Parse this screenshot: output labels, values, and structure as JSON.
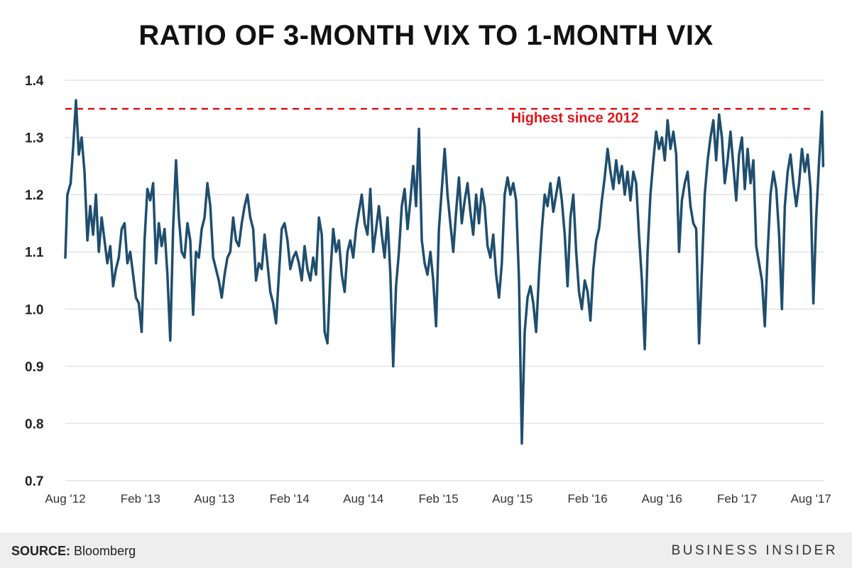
{
  "title": "RATIO OF 3-MONTH VIX TO 1-MONTH VIX",
  "footer": {
    "source_label": "SOURCE:",
    "source_value": "Bloomberg",
    "brand": "BUSINESS INSIDER"
  },
  "colors": {
    "line": "#1f4e6e",
    "reference_line": "#e0161b",
    "annotation": "#e0161b",
    "grid": "#e4e4e4",
    "footer_bg": "#eeeeee"
  },
  "chart_data": {
    "type": "line",
    "title": "RATIO OF 3-MONTH VIX TO 1-MONTH VIX",
    "xlabel": "",
    "ylabel": "",
    "ylim": [
      0.7,
      1.4
    ],
    "yticks": [
      "0.7",
      "0.8",
      "0.9",
      "1.0",
      "1.1",
      "1.2",
      "1.3",
      "1.4"
    ],
    "x_start": "2012-08-01",
    "x_end": "2017-09-01",
    "xtick_labels": [
      {
        "date": "2012-08-01",
        "label": "Aug '12"
      },
      {
        "date": "2013-02-01",
        "label": "Feb '13"
      },
      {
        "date": "2013-08-01",
        "label": "Aug '13"
      },
      {
        "date": "2014-02-01",
        "label": "Feb '14"
      },
      {
        "date": "2014-08-01",
        "label": "Aug '14"
      },
      {
        "date": "2015-02-01",
        "label": "Feb '15"
      },
      {
        "date": "2015-08-01",
        "label": "Aug '15"
      },
      {
        "date": "2016-02-01",
        "label": "Feb '16"
      },
      {
        "date": "2016-08-01",
        "label": "Aug '16"
      },
      {
        "date": "2017-02-01",
        "label": "Feb '17"
      },
      {
        "date": "2017-08-01",
        "label": "Aug '17"
      }
    ],
    "grid": true,
    "reference_line": {
      "value": 1.35,
      "style": "dashed"
    },
    "annotation": {
      "text": "Highest since 2012",
      "date": "2016-01-01",
      "value": 1.32
    },
    "series": [
      {
        "points": [
          [
            "2012-08-01",
            1.09
          ],
          [
            "2012-08-06",
            1.2
          ],
          [
            "2012-08-14",
            1.22
          ],
          [
            "2012-08-20",
            1.28
          ],
          [
            "2012-08-27",
            1.365
          ],
          [
            "2012-09-03",
            1.27
          ],
          [
            "2012-09-10",
            1.3
          ],
          [
            "2012-09-17",
            1.24
          ],
          [
            "2012-09-24",
            1.12
          ],
          [
            "2012-10-01",
            1.18
          ],
          [
            "2012-10-08",
            1.13
          ],
          [
            "2012-10-15",
            1.2
          ],
          [
            "2012-10-22",
            1.1
          ],
          [
            "2012-10-29",
            1.16
          ],
          [
            "2012-11-05",
            1.12
          ],
          [
            "2012-11-12",
            1.08
          ],
          [
            "2012-11-19",
            1.11
          ],
          [
            "2012-11-26",
            1.04
          ],
          [
            "2012-12-03",
            1.07
          ],
          [
            "2012-12-10",
            1.09
          ],
          [
            "2012-12-17",
            1.14
          ],
          [
            "2012-12-24",
            1.15
          ],
          [
            "2012-12-31",
            1.08
          ],
          [
            "2013-01-07",
            1.1
          ],
          [
            "2013-01-14",
            1.06
          ],
          [
            "2013-01-21",
            1.02
          ],
          [
            "2013-01-28",
            1.01
          ],
          [
            "2013-02-04",
            0.96
          ],
          [
            "2013-02-11",
            1.12
          ],
          [
            "2013-02-18",
            1.21
          ],
          [
            "2013-02-25",
            1.19
          ],
          [
            "2013-03-04",
            1.22
          ],
          [
            "2013-03-11",
            1.08
          ],
          [
            "2013-03-18",
            1.15
          ],
          [
            "2013-03-25",
            1.11
          ],
          [
            "2013-04-01",
            1.14
          ],
          [
            "2013-04-08",
            1.06
          ],
          [
            "2013-04-15",
            0.945
          ],
          [
            "2013-04-22",
            1.14
          ],
          [
            "2013-04-29",
            1.26
          ],
          [
            "2013-05-06",
            1.16
          ],
          [
            "2013-05-13",
            1.1
          ],
          [
            "2013-05-20",
            1.09
          ],
          [
            "2013-05-27",
            1.15
          ],
          [
            "2013-06-03",
            1.12
          ],
          [
            "2013-06-10",
            0.99
          ],
          [
            "2013-06-17",
            1.1
          ],
          [
            "2013-06-24",
            1.09
          ],
          [
            "2013-07-01",
            1.14
          ],
          [
            "2013-07-08",
            1.16
          ],
          [
            "2013-07-15",
            1.22
          ],
          [
            "2013-07-22",
            1.18
          ],
          [
            "2013-07-29",
            1.09
          ],
          [
            "2013-08-05",
            1.07
          ],
          [
            "2013-08-12",
            1.05
          ],
          [
            "2013-08-19",
            1.02
          ],
          [
            "2013-08-26",
            1.06
          ],
          [
            "2013-09-02",
            1.09
          ],
          [
            "2013-09-09",
            1.1
          ],
          [
            "2013-09-16",
            1.16
          ],
          [
            "2013-09-23",
            1.12
          ],
          [
            "2013-09-30",
            1.11
          ],
          [
            "2013-10-07",
            1.15
          ],
          [
            "2013-10-14",
            1.18
          ],
          [
            "2013-10-21",
            1.2
          ],
          [
            "2013-10-28",
            1.16
          ],
          [
            "2013-11-04",
            1.14
          ],
          [
            "2013-11-11",
            1.05
          ],
          [
            "2013-11-18",
            1.08
          ],
          [
            "2013-11-25",
            1.07
          ],
          [
            "2013-12-02",
            1.13
          ],
          [
            "2013-12-09",
            1.08
          ],
          [
            "2013-12-16",
            1.03
          ],
          [
            "2013-12-23",
            1.01
          ],
          [
            "2013-12-30",
            0.975
          ],
          [
            "2014-01-06",
            1.06
          ],
          [
            "2014-01-13",
            1.14
          ],
          [
            "2014-01-20",
            1.15
          ],
          [
            "2014-01-27",
            1.12
          ],
          [
            "2014-02-03",
            1.07
          ],
          [
            "2014-02-10",
            1.09
          ],
          [
            "2014-02-17",
            1.1
          ],
          [
            "2014-02-24",
            1.08
          ],
          [
            "2014-03-03",
            1.05
          ],
          [
            "2014-03-10",
            1.11
          ],
          [
            "2014-03-17",
            1.07
          ],
          [
            "2014-03-24",
            1.05
          ],
          [
            "2014-03-31",
            1.09
          ],
          [
            "2014-04-07",
            1.06
          ],
          [
            "2014-04-14",
            1.16
          ],
          [
            "2014-04-21",
            1.13
          ],
          [
            "2014-04-28",
            0.96
          ],
          [
            "2014-05-05",
            0.94
          ],
          [
            "2014-05-12",
            1.06
          ],
          [
            "2014-05-19",
            1.14
          ],
          [
            "2014-05-26",
            1.1
          ],
          [
            "2014-06-02",
            1.12
          ],
          [
            "2014-06-09",
            1.06
          ],
          [
            "2014-06-16",
            1.03
          ],
          [
            "2014-06-23",
            1.1
          ],
          [
            "2014-06-30",
            1.12
          ],
          [
            "2014-07-07",
            1.09
          ],
          [
            "2014-07-14",
            1.14
          ],
          [
            "2014-07-21",
            1.17
          ],
          [
            "2014-07-28",
            1.2
          ],
          [
            "2014-08-04",
            1.15
          ],
          [
            "2014-08-11",
            1.13
          ],
          [
            "2014-08-18",
            1.21
          ],
          [
            "2014-08-25",
            1.1
          ],
          [
            "2014-09-01",
            1.14
          ],
          [
            "2014-09-08",
            1.18
          ],
          [
            "2014-09-15",
            1.13
          ],
          [
            "2014-09-22",
            1.09
          ],
          [
            "2014-09-29",
            1.16
          ],
          [
            "2014-10-06",
            1.06
          ],
          [
            "2014-10-13",
            0.9
          ],
          [
            "2014-10-20",
            1.04
          ],
          [
            "2014-10-27",
            1.1
          ],
          [
            "2014-11-03",
            1.18
          ],
          [
            "2014-11-10",
            1.21
          ],
          [
            "2014-11-17",
            1.14
          ],
          [
            "2014-11-24",
            1.19
          ],
          [
            "2014-12-01",
            1.25
          ],
          [
            "2014-12-08",
            1.18
          ],
          [
            "2014-12-15",
            1.315
          ],
          [
            "2014-12-22",
            1.12
          ],
          [
            "2014-12-29",
            1.08
          ],
          [
            "2015-01-05",
            1.06
          ],
          [
            "2015-01-12",
            1.1
          ],
          [
            "2015-01-19",
            1.05
          ],
          [
            "2015-01-26",
            0.97
          ],
          [
            "2015-02-02",
            1.14
          ],
          [
            "2015-02-09",
            1.21
          ],
          [
            "2015-02-16",
            1.28
          ],
          [
            "2015-02-23",
            1.2
          ],
          [
            "2015-03-02",
            1.15
          ],
          [
            "2015-03-09",
            1.1
          ],
          [
            "2015-03-16",
            1.17
          ],
          [
            "2015-03-23",
            1.23
          ],
          [
            "2015-03-30",
            1.15
          ],
          [
            "2015-04-06",
            1.19
          ],
          [
            "2015-04-13",
            1.22
          ],
          [
            "2015-04-20",
            1.17
          ],
          [
            "2015-04-27",
            1.13
          ],
          [
            "2015-05-04",
            1.2
          ],
          [
            "2015-05-11",
            1.15
          ],
          [
            "2015-05-18",
            1.21
          ],
          [
            "2015-05-25",
            1.18
          ],
          [
            "2015-06-01",
            1.11
          ],
          [
            "2015-06-08",
            1.09
          ],
          [
            "2015-06-15",
            1.13
          ],
          [
            "2015-06-22",
            1.06
          ],
          [
            "2015-06-29",
            1.02
          ],
          [
            "2015-07-06",
            1.08
          ],
          [
            "2015-07-13",
            1.2
          ],
          [
            "2015-07-20",
            1.23
          ],
          [
            "2015-07-27",
            1.2
          ],
          [
            "2015-08-03",
            1.22
          ],
          [
            "2015-08-10",
            1.19
          ],
          [
            "2015-08-17",
            1.05
          ],
          [
            "2015-08-24",
            0.765
          ],
          [
            "2015-08-31",
            0.96
          ],
          [
            "2015-09-07",
            1.02
          ],
          [
            "2015-09-14",
            1.04
          ],
          [
            "2015-09-21",
            1.01
          ],
          [
            "2015-09-28",
            0.96
          ],
          [
            "2015-10-05",
            1.06
          ],
          [
            "2015-10-12",
            1.14
          ],
          [
            "2015-10-19",
            1.2
          ],
          [
            "2015-10-26",
            1.18
          ],
          [
            "2015-11-02",
            1.22
          ],
          [
            "2015-11-09",
            1.17
          ],
          [
            "2015-11-16",
            1.2
          ],
          [
            "2015-11-23",
            1.23
          ],
          [
            "2015-11-30",
            1.19
          ],
          [
            "2015-12-07",
            1.13
          ],
          [
            "2015-12-14",
            1.04
          ],
          [
            "2015-12-21",
            1.16
          ],
          [
            "2015-12-28",
            1.2
          ],
          [
            "2016-01-04",
            1.1
          ],
          [
            "2016-01-11",
            1.03
          ],
          [
            "2016-01-18",
            1.0
          ],
          [
            "2016-01-25",
            1.05
          ],
          [
            "2016-02-01",
            1.03
          ],
          [
            "2016-02-08",
            0.98
          ],
          [
            "2016-02-15",
            1.07
          ],
          [
            "2016-02-22",
            1.12
          ],
          [
            "2016-02-29",
            1.14
          ],
          [
            "2016-03-07",
            1.19
          ],
          [
            "2016-03-14",
            1.23
          ],
          [
            "2016-03-21",
            1.28
          ],
          [
            "2016-03-28",
            1.24
          ],
          [
            "2016-04-04",
            1.21
          ],
          [
            "2016-04-11",
            1.26
          ],
          [
            "2016-04-18",
            1.22
          ],
          [
            "2016-04-25",
            1.25
          ],
          [
            "2016-05-02",
            1.2
          ],
          [
            "2016-05-09",
            1.24
          ],
          [
            "2016-05-16",
            1.19
          ],
          [
            "2016-05-23",
            1.24
          ],
          [
            "2016-05-30",
            1.22
          ],
          [
            "2016-06-06",
            1.13
          ],
          [
            "2016-06-13",
            1.05
          ],
          [
            "2016-06-20",
            0.93
          ],
          [
            "2016-06-27",
            1.1
          ],
          [
            "2016-07-04",
            1.2
          ],
          [
            "2016-07-11",
            1.26
          ],
          [
            "2016-07-18",
            1.31
          ],
          [
            "2016-07-25",
            1.28
          ],
          [
            "2016-08-01",
            1.3
          ],
          [
            "2016-08-08",
            1.26
          ],
          [
            "2016-08-15",
            1.33
          ],
          [
            "2016-08-22",
            1.28
          ],
          [
            "2016-08-29",
            1.31
          ],
          [
            "2016-09-05",
            1.27
          ],
          [
            "2016-09-12",
            1.1
          ],
          [
            "2016-09-19",
            1.19
          ],
          [
            "2016-09-26",
            1.22
          ],
          [
            "2016-10-03",
            1.24
          ],
          [
            "2016-10-10",
            1.18
          ],
          [
            "2016-10-17",
            1.15
          ],
          [
            "2016-10-24",
            1.14
          ],
          [
            "2016-10-31",
            0.94
          ],
          [
            "2016-11-07",
            1.07
          ],
          [
            "2016-11-14",
            1.2
          ],
          [
            "2016-11-21",
            1.26
          ],
          [
            "2016-11-28",
            1.3
          ],
          [
            "2016-12-05",
            1.33
          ],
          [
            "2016-12-12",
            1.26
          ],
          [
            "2016-12-19",
            1.34
          ],
          [
            "2016-12-26",
            1.3
          ],
          [
            "2017-01-02",
            1.22
          ],
          [
            "2017-01-09",
            1.26
          ],
          [
            "2017-01-16",
            1.31
          ],
          [
            "2017-01-23",
            1.25
          ],
          [
            "2017-01-30",
            1.19
          ],
          [
            "2017-02-06",
            1.27
          ],
          [
            "2017-02-13",
            1.3
          ],
          [
            "2017-02-20",
            1.21
          ],
          [
            "2017-02-27",
            1.28
          ],
          [
            "2017-03-06",
            1.22
          ],
          [
            "2017-03-13",
            1.26
          ],
          [
            "2017-03-20",
            1.11
          ],
          [
            "2017-03-27",
            1.08
          ],
          [
            "2017-04-03",
            1.05
          ],
          [
            "2017-04-10",
            0.97
          ],
          [
            "2017-04-17",
            1.1
          ],
          [
            "2017-04-24",
            1.2
          ],
          [
            "2017-05-01",
            1.24
          ],
          [
            "2017-05-08",
            1.21
          ],
          [
            "2017-05-15",
            1.13
          ],
          [
            "2017-05-22",
            1.0
          ],
          [
            "2017-05-29",
            1.18
          ],
          [
            "2017-06-05",
            1.24
          ],
          [
            "2017-06-12",
            1.27
          ],
          [
            "2017-06-19",
            1.22
          ],
          [
            "2017-06-26",
            1.18
          ],
          [
            "2017-07-03",
            1.22
          ],
          [
            "2017-07-10",
            1.28
          ],
          [
            "2017-07-17",
            1.24
          ],
          [
            "2017-07-24",
            1.27
          ],
          [
            "2017-07-31",
            1.21
          ],
          [
            "2017-08-07",
            1.01
          ],
          [
            "2017-08-14",
            1.16
          ],
          [
            "2017-08-21",
            1.26
          ],
          [
            "2017-08-28",
            1.345
          ],
          [
            "2017-08-31",
            1.25
          ]
        ]
      }
    ]
  }
}
